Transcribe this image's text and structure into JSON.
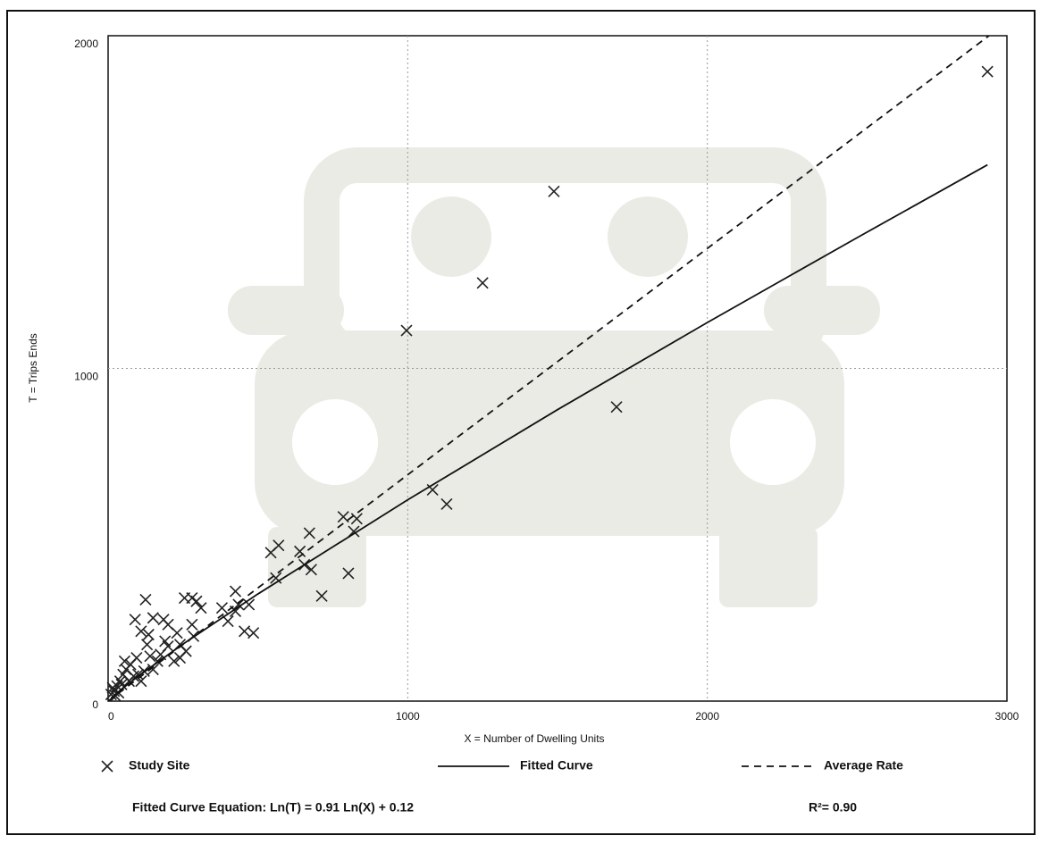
{
  "chart_data": {
    "type": "scatter",
    "x_label": "X = Number of Dwelling Units",
    "y_label": "T = Trips Ends",
    "xlim": [
      0,
      3000
    ],
    "ylim": [
      0,
      2000
    ],
    "xticks": [
      0,
      1000,
      2000,
      3000
    ],
    "yticks": [
      0,
      1000,
      2000
    ],
    "grid": true,
    "series": [
      {
        "name": "Study Site",
        "color": "#222222",
        "marker": "x",
        "x": [
          2935,
          1488,
          1250,
          996,
          1697,
          1083,
          1130,
          802,
          713,
          785,
          830,
          820,
          672,
          640,
          655,
          678,
          543,
          569,
          560,
          425,
          435,
          425,
          470,
          455,
          485,
          400,
          380,
          310,
          295,
          280,
          255,
          125,
          90,
          110,
          135,
          150,
          185,
          200,
          230,
          280,
          285,
          240,
          200,
          175,
          165,
          220,
          260,
          150,
          120,
          100,
          130,
          75,
          60,
          50,
          40,
          30,
          20,
          10,
          15,
          70,
          95,
          55,
          85,
          110,
          140,
          190,
          240,
          25,
          35,
          45
        ],
        "values": [
          1892,
          1532,
          1257,
          1114,
          884,
          635,
          592,
          384,
          316,
          554,
          548,
          510,
          505,
          450,
          410,
          395,
          446,
          468,
          370,
          330,
          290,
          270,
          290,
          210,
          205,
          240,
          280,
          280,
          300,
          310,
          310,
          305,
          245,
          210,
          200,
          250,
          245,
          230,
          205,
          230,
          195,
          170,
          165,
          140,
          120,
          120,
          150,
          95,
          90,
          80,
          170,
          110,
          95,
          80,
          60,
          45,
          30,
          20,
          40,
          60,
          130,
          120,
          75,
          60,
          135,
          180,
          130,
          15,
          25,
          50
        ]
      },
      {
        "name": "Fitted Curve",
        "color": "#111111",
        "marker": "line",
        "dash": false,
        "x": [
          10,
          50,
          100,
          250,
          500,
          1000,
          1500,
          2000,
          2500,
          2935
        ],
        "values": [
          9.16,
          39.6,
          74.5,
          171.4,
          322,
          605,
          876,
          1138,
          1393,
          1612
        ]
      },
      {
        "name": "Average Rate",
        "color": "#111111",
        "marker": "line",
        "dash": true,
        "x": [
          0,
          2940
        ],
        "values": [
          0,
          2000
        ]
      }
    ],
    "equation": "Fitted Curve Equation: Ln(T) = 0.91 Ln(X) + 0.12",
    "r_squared": "R²= 0.90"
  }
}
